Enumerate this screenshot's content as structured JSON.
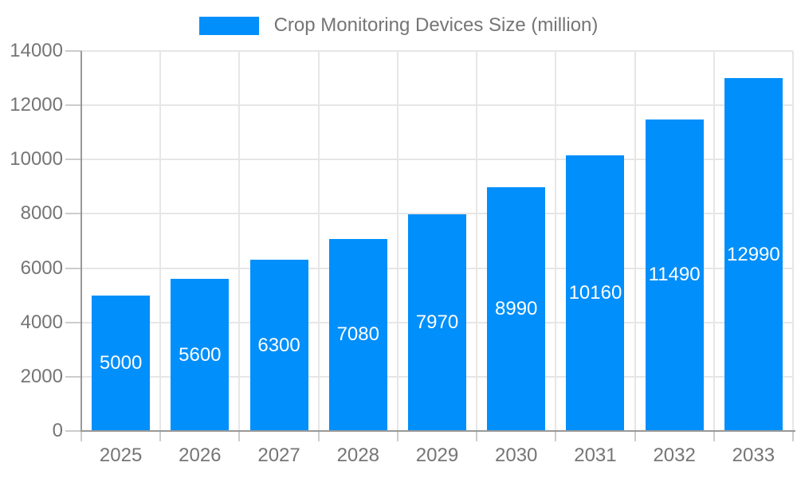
{
  "chart_data": {
    "type": "bar",
    "title": "Crop Monitoring Devices Size (million)",
    "legend": {
      "position": "top",
      "entries": [
        "Crop Monitoring Devices Size (million)"
      ]
    },
    "categories": [
      "2025",
      "2026",
      "2027",
      "2028",
      "2029",
      "2030",
      "2031",
      "2032",
      "2033"
    ],
    "series": [
      {
        "name": "Crop Monitoring Devices Size (million)",
        "values": [
          5000,
          5600,
          6300,
          7080,
          7970,
          8990,
          10160,
          11490,
          12990
        ]
      }
    ],
    "xlabel": "",
    "ylabel": "",
    "ylim": [
      0,
      14000
    ],
    "yticks": [
      0,
      2000,
      4000,
      6000,
      8000,
      10000,
      12000,
      14000
    ],
    "grid": "on",
    "data_labels": "inside-center",
    "colors": {
      "bar": "#008FFB",
      "bar_label": "#FFFFFF",
      "axis_text": "#757575",
      "grid_line": "#E6E6E6",
      "axis_line": "#999999",
      "tick_line": "#CCCCCC",
      "background": "#FFFFFF"
    }
  }
}
